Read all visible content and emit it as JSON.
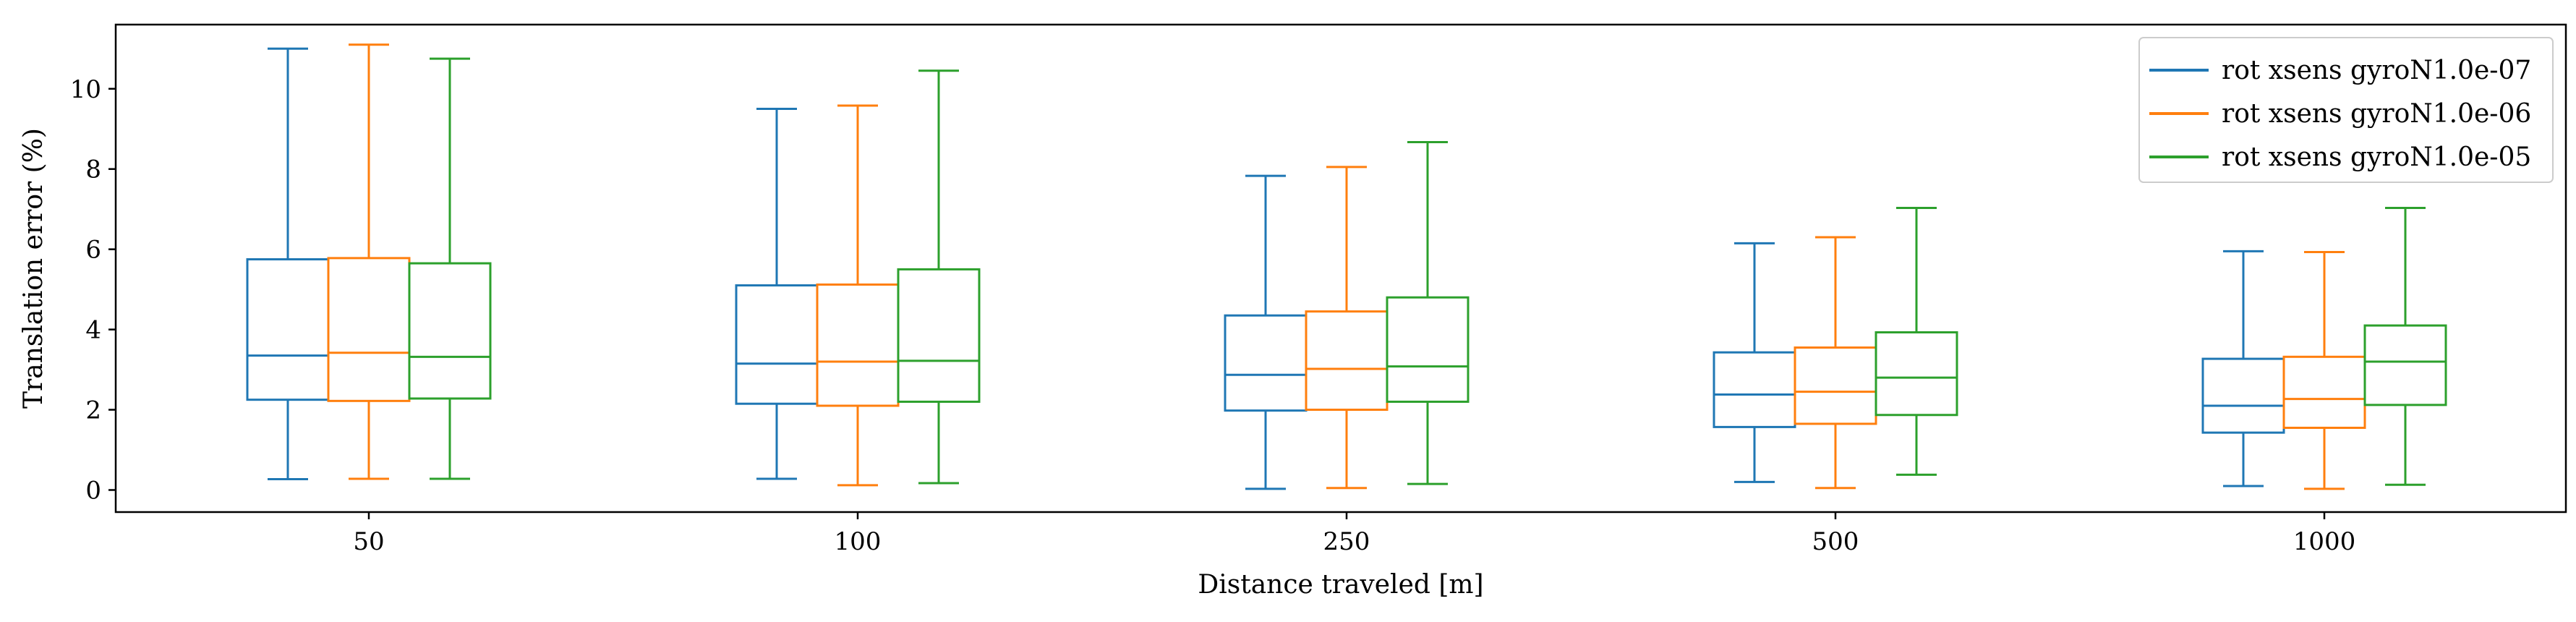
{
  "chart_data": {
    "type": "box",
    "categories": [
      "50",
      "100",
      "250",
      "500",
      "1000"
    ],
    "xlabel": "Distance traveled [m]",
    "ylabel": "Translation error (%)",
    "ylim": [
      -0.55,
      11.6
    ],
    "yticks": [
      0,
      2,
      4,
      6,
      8,
      10
    ],
    "grid": false,
    "legend_position": "top-right",
    "series": [
      {
        "name": "rot xsens gyroN1.0e-07",
        "color": "#1f77b4",
        "boxes": [
          {
            "whisker_low": 0.27,
            "q1": 2.25,
            "median": 3.35,
            "q3": 5.75,
            "whisker_high": 11.0
          },
          {
            "whisker_low": 0.28,
            "q1": 2.15,
            "median": 3.15,
            "q3": 5.1,
            "whisker_high": 9.5
          },
          {
            "whisker_low": 0.03,
            "q1": 1.98,
            "median": 2.87,
            "q3": 4.35,
            "whisker_high": 7.83
          },
          {
            "whisker_low": 0.2,
            "q1": 1.57,
            "median": 2.38,
            "q3": 3.43,
            "whisker_high": 6.15
          },
          {
            "whisker_low": 0.1,
            "q1": 1.43,
            "median": 2.1,
            "q3": 3.27,
            "whisker_high": 5.95
          }
        ]
      },
      {
        "name": "rot xsens gyroN1.0e-06",
        "color": "#ff7f0e",
        "boxes": [
          {
            "whisker_low": 0.28,
            "q1": 2.22,
            "median": 3.42,
            "q3": 5.78,
            "whisker_high": 11.1
          },
          {
            "whisker_low": 0.12,
            "q1": 2.1,
            "median": 3.2,
            "q3": 5.12,
            "whisker_high": 9.58
          },
          {
            "whisker_low": 0.05,
            "q1": 2.0,
            "median": 3.02,
            "q3": 4.45,
            "whisker_high": 8.05
          },
          {
            "whisker_low": 0.05,
            "q1": 1.65,
            "median": 2.45,
            "q3": 3.55,
            "whisker_high": 6.3
          },
          {
            "whisker_low": 0.03,
            "q1": 1.55,
            "median": 2.27,
            "q3": 3.32,
            "whisker_high": 5.93
          }
        ]
      },
      {
        "name": "rot xsens gyroN1.0e-05",
        "color": "#2ca02c",
        "boxes": [
          {
            "whisker_low": 0.28,
            "q1": 2.28,
            "median": 3.32,
            "q3": 5.65,
            "whisker_high": 10.75
          },
          {
            "whisker_low": 0.17,
            "q1": 2.2,
            "median": 3.22,
            "q3": 5.5,
            "whisker_high": 10.45
          },
          {
            "whisker_low": 0.15,
            "q1": 2.2,
            "median": 3.08,
            "q3": 4.8,
            "whisker_high": 8.67
          },
          {
            "whisker_low": 0.38,
            "q1": 1.87,
            "median": 2.8,
            "q3": 3.93,
            "whisker_high": 7.03
          },
          {
            "whisker_low": 0.13,
            "q1": 2.12,
            "median": 3.2,
            "q3": 4.1,
            "whisker_high": 7.03
          }
        ]
      }
    ]
  }
}
